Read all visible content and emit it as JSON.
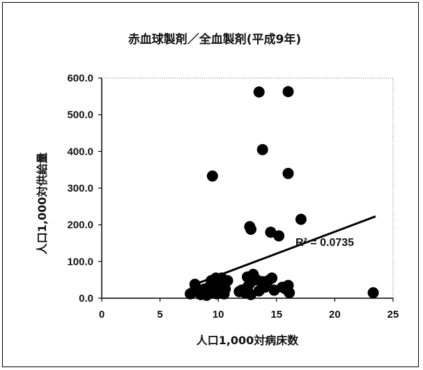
{
  "chart_data": {
    "type": "scatter",
    "title": "赤血球製剤／全血製剤(平成9年)",
    "xlabel": "人口1,000対病床数",
    "ylabel": "人口1,000対供給量",
    "xlim": [
      0,
      25
    ],
    "ylim": [
      0,
      600
    ],
    "x_ticks": [
      "0",
      "5",
      "10",
      "15",
      "20",
      "25"
    ],
    "y_ticks": [
      "0.0",
      "100.0",
      "200.0",
      "300.0",
      "400.0",
      "500.0",
      "600.0"
    ],
    "grid": false,
    "trendline": {
      "type": "linear",
      "x": [
        8.0,
        23.5
      ],
      "y": [
        38,
        223
      ],
      "label": "R² = 0.0735"
    },
    "points": [
      {
        "x": 7.6,
        "y": 12
      },
      {
        "x": 7.9,
        "y": 18
      },
      {
        "x": 8.0,
        "y": 38
      },
      {
        "x": 8.5,
        "y": 10
      },
      {
        "x": 8.8,
        "y": 25
      },
      {
        "x": 9.0,
        "y": 8
      },
      {
        "x": 9.2,
        "y": 30
      },
      {
        "x": 9.4,
        "y": 48
      },
      {
        "x": 9.5,
        "y": 22
      },
      {
        "x": 9.6,
        "y": 15
      },
      {
        "x": 9.7,
        "y": 40
      },
      {
        "x": 9.8,
        "y": 55
      },
      {
        "x": 9.9,
        "y": 12
      },
      {
        "x": 10.0,
        "y": 30
      },
      {
        "x": 10.1,
        "y": 45
      },
      {
        "x": 10.2,
        "y": 20
      },
      {
        "x": 10.3,
        "y": 55
      },
      {
        "x": 10.4,
        "y": 35
      },
      {
        "x": 10.5,
        "y": 12
      },
      {
        "x": 10.6,
        "y": 25
      },
      {
        "x": 10.8,
        "y": 48
      },
      {
        "x": 9.5,
        "y": 333
      },
      {
        "x": 11.8,
        "y": 18
      },
      {
        "x": 12.0,
        "y": 22
      },
      {
        "x": 12.3,
        "y": 15
      },
      {
        "x": 12.5,
        "y": 30
      },
      {
        "x": 12.5,
        "y": 58
      },
      {
        "x": 12.7,
        "y": 40
      },
      {
        "x": 12.8,
        "y": 10
      },
      {
        "x": 12.7,
        "y": 195
      },
      {
        "x": 12.8,
        "y": 188
      },
      {
        "x": 13.0,
        "y": 65
      },
      {
        "x": 13.3,
        "y": 50
      },
      {
        "x": 13.5,
        "y": 20
      },
      {
        "x": 13.8,
        "y": 45
      },
      {
        "x": 14.0,
        "y": 30
      },
      {
        "x": 14.3,
        "y": 48
      },
      {
        "x": 14.5,
        "y": 180
      },
      {
        "x": 14.6,
        "y": 55
      },
      {
        "x": 14.8,
        "y": 22
      },
      {
        "x": 15.2,
        "y": 170
      },
      {
        "x": 15.5,
        "y": 30
      },
      {
        "x": 15.8,
        "y": 25
      },
      {
        "x": 16.0,
        "y": 35
      },
      {
        "x": 16.1,
        "y": 15
      },
      {
        "x": 13.5,
        "y": 562
      },
      {
        "x": 13.8,
        "y": 405
      },
      {
        "x": 16.0,
        "y": 563
      },
      {
        "x": 16.0,
        "y": 340
      },
      {
        "x": 17.1,
        "y": 215
      },
      {
        "x": 23.3,
        "y": 15
      }
    ]
  }
}
